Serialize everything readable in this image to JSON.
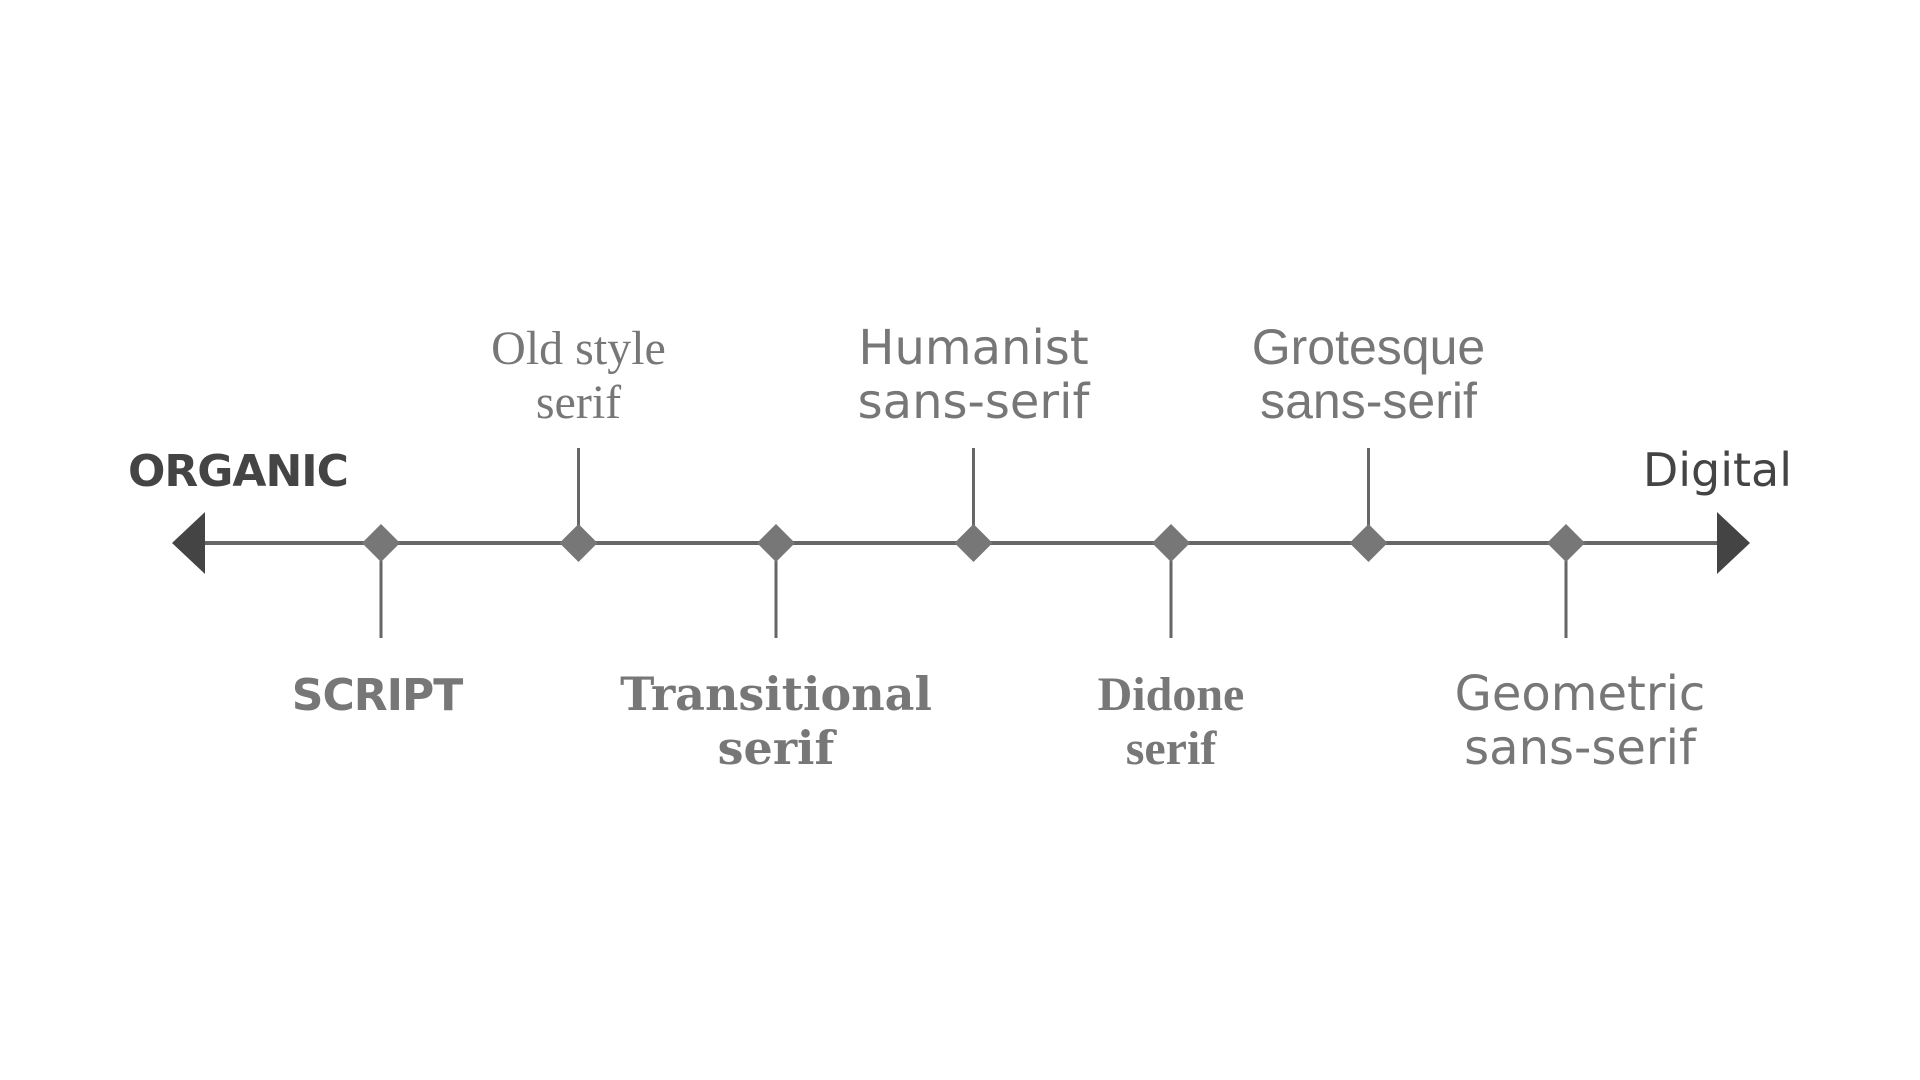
{
  "axis": {
    "left_label": "ORGANIC",
    "right_label": "Digital"
  },
  "colors": {
    "line": "#666666",
    "marker": "#777777",
    "arrowhead": "#444444",
    "label": "#777777",
    "end_label": "#444444"
  },
  "markers": [
    {
      "id": "script",
      "side": "below",
      "lines": [
        "SCRIPT"
      ]
    },
    {
      "id": "old-style-serif",
      "side": "above",
      "lines": [
        "Old style",
        "serif"
      ]
    },
    {
      "id": "transitional-serif",
      "side": "below",
      "lines": [
        "Transitional",
        "serif"
      ]
    },
    {
      "id": "humanist-sans-serif",
      "side": "above",
      "lines": [
        "Humanist",
        "sans-serif"
      ]
    },
    {
      "id": "didone-serif",
      "side": "below",
      "lines": [
        "Didone",
        "serif"
      ]
    },
    {
      "id": "grotesque-sans-serif",
      "side": "above",
      "lines": [
        "Grotesque",
        "sans-serif"
      ]
    },
    {
      "id": "geometric-sans-serif",
      "side": "below",
      "lines": [
        "Geometric",
        "sans-serif"
      ]
    }
  ]
}
